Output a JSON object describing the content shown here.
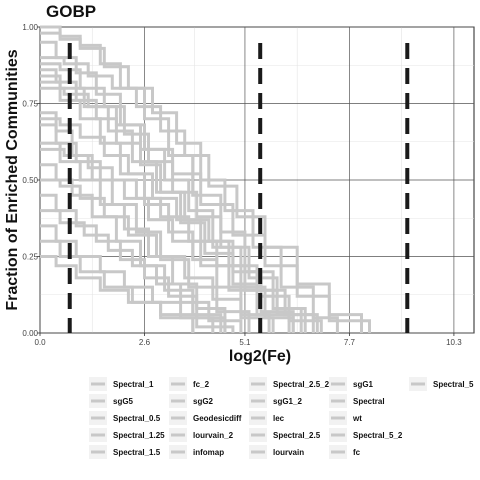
{
  "chart_data": {
    "type": "line",
    "title": "GOBP",
    "xlabel": "log2(Fe)",
    "ylabel": "Fraction of Enriched Communities",
    "xlim": [
      0,
      10.8
    ],
    "ylim": [
      0,
      1.0
    ],
    "x_ticks": [
      {
        "value": 0.0,
        "label": "0.0"
      },
      {
        "value": 2.6,
        "label": "2.6"
      },
      {
        "value": 5.1,
        "label": "5.1"
      },
      {
        "value": 7.7,
        "label": "7.7"
      },
      {
        "value": 10.3,
        "label": "10.3"
      }
    ],
    "y_ticks": [
      {
        "value": 0.0,
        "label": "0.00"
      },
      {
        "value": 0.25,
        "label": "0.25"
      },
      {
        "value": 0.5,
        "label": "0.50"
      },
      {
        "value": 0.75,
        "label": "0.75"
      },
      {
        "value": 1.0,
        "label": "1.00"
      }
    ],
    "grid": true,
    "line_color": "#c8c8c8",
    "reference_color": "#1a1a1a",
    "reference_lines_x": [
      0.74,
      5.48,
      9.14
    ],
    "legend_position": "bottom",
    "series": [
      {
        "name": "Spectral_1",
        "x": [
          0,
          0.5,
          1.0,
          1.5,
          2.0,
          2.6,
          3.2,
          3.8,
          4.5,
          5.1,
          5.8,
          6.5
        ],
        "y": [
          1.0,
          0.97,
          0.94,
          0.88,
          0.8,
          0.7,
          0.58,
          0.45,
          0.33,
          0.2,
          0.08,
          0.0
        ]
      },
      {
        "name": "sgG5",
        "x": [
          0,
          0.5,
          1.0,
          1.6,
          2.2,
          2.8,
          3.4,
          4.0,
          4.6,
          5.3,
          6.0,
          6.8,
          7.4
        ],
        "y": [
          0.98,
          0.96,
          0.93,
          0.87,
          0.8,
          0.72,
          0.62,
          0.5,
          0.4,
          0.28,
          0.15,
          0.05,
          0.0
        ]
      },
      {
        "name": "Spectral_0.5",
        "x": [
          0,
          0.4,
          0.9,
          1.4,
          2.0,
          2.5,
          3.1,
          3.7,
          4.3,
          5.0,
          5.6,
          6.3
        ],
        "y": [
          0.95,
          0.9,
          0.85,
          0.78,
          0.68,
          0.6,
          0.5,
          0.4,
          0.28,
          0.15,
          0.05,
          0.0
        ]
      },
      {
        "name": "Spectral_1.25",
        "x": [
          0,
          0.6,
          1.2,
          1.8,
          2.4,
          3.0,
          3.6,
          4.2,
          4.9,
          5.6,
          6.4,
          7.2,
          8.0
        ],
        "y": [
          0.9,
          0.88,
          0.84,
          0.8,
          0.74,
          0.66,
          0.58,
          0.48,
          0.38,
          0.28,
          0.16,
          0.06,
          0.0
        ]
      },
      {
        "name": "Spectral_1.5",
        "x": [
          0,
          0.5,
          1.0,
          1.6,
          2.1,
          2.7,
          3.3,
          3.9,
          4.5,
          5.2,
          5.9,
          6.6
        ],
        "y": [
          0.88,
          0.86,
          0.8,
          0.74,
          0.65,
          0.56,
          0.46,
          0.38,
          0.28,
          0.18,
          0.08,
          0.0
        ]
      },
      {
        "name": "fc_2",
        "x": [
          0,
          0.4,
          0.9,
          1.4,
          1.9,
          2.5,
          3.0,
          3.6,
          4.2,
          4.8,
          5.5,
          6.2,
          7.0
        ],
        "y": [
          0.86,
          0.82,
          0.76,
          0.7,
          0.62,
          0.55,
          0.46,
          0.37,
          0.3,
          0.2,
          0.12,
          0.04,
          0.0
        ]
      },
      {
        "name": "sgG2",
        "x": [
          0,
          0.5,
          1.1,
          1.7,
          2.3,
          2.9,
          3.5,
          4.1,
          4.8,
          5.5,
          6.3
        ],
        "y": [
          0.84,
          0.8,
          0.74,
          0.66,
          0.56,
          0.46,
          0.36,
          0.26,
          0.16,
          0.07,
          0.0
        ]
      },
      {
        "name": "Geodesicdiff",
        "x": [
          0,
          0.5,
          1.0,
          1.5,
          2.0,
          2.6,
          3.2,
          3.8,
          4.4,
          5.0,
          5.7
        ],
        "y": [
          0.82,
          0.76,
          0.7,
          0.62,
          0.52,
          0.42,
          0.33,
          0.24,
          0.15,
          0.06,
          0.0
        ]
      },
      {
        "name": "lourvain_2",
        "x": [
          0,
          0.6,
          1.2,
          1.9,
          2.6,
          3.3,
          4.0,
          4.8,
          5.6,
          6.4,
          7.2,
          8.2
        ],
        "y": [
          0.8,
          0.78,
          0.74,
          0.68,
          0.6,
          0.52,
          0.42,
          0.32,
          0.22,
          0.12,
          0.04,
          0.0
        ]
      },
      {
        "name": "infomap",
        "x": [
          0,
          0.4,
          0.8,
          1.3,
          1.8,
          2.4,
          3.0,
          3.7,
          4.4,
          5.2
        ],
        "y": [
          0.72,
          0.66,
          0.58,
          0.5,
          0.42,
          0.33,
          0.24,
          0.15,
          0.07,
          0.0
        ]
      },
      {
        "name": "Spectral_2.5_2",
        "x": [
          0,
          0.5,
          1.0,
          1.6,
          2.2,
          2.8,
          3.4,
          4.0,
          4.7,
          5.4,
          6.1,
          6.9
        ],
        "y": [
          0.7,
          0.68,
          0.64,
          0.58,
          0.52,
          0.44,
          0.37,
          0.3,
          0.22,
          0.14,
          0.06,
          0.0
        ]
      },
      {
        "name": "sgG1_2",
        "x": [
          0,
          0.4,
          0.9,
          1.5,
          2.1,
          2.7,
          3.3,
          4.0,
          4.7,
          5.4,
          6.2
        ],
        "y": [
          0.68,
          0.62,
          0.56,
          0.5,
          0.44,
          0.37,
          0.3,
          0.22,
          0.14,
          0.06,
          0.0
        ]
      },
      {
        "name": "lec",
        "x": [
          0,
          0.5,
          1.0,
          1.5,
          2.1,
          2.7,
          3.3,
          3.9,
          4.6
        ],
        "y": [
          0.62,
          0.56,
          0.5,
          0.42,
          0.34,
          0.25,
          0.16,
          0.08,
          0.0
        ]
      },
      {
        "name": "Spectral_2.5",
        "x": [
          0,
          0.6,
          1.2,
          1.8,
          2.4,
          3.0,
          3.7,
          4.4,
          5.1,
          5.9,
          6.8
        ],
        "y": [
          0.6,
          0.58,
          0.54,
          0.5,
          0.44,
          0.38,
          0.3,
          0.22,
          0.14,
          0.06,
          0.0
        ]
      },
      {
        "name": "lourvain",
        "x": [
          0,
          0.4,
          0.8,
          1.3,
          1.9,
          2.5,
          3.1,
          3.8,
          4.5
        ],
        "y": [
          0.55,
          0.5,
          0.45,
          0.38,
          0.3,
          0.22,
          0.14,
          0.06,
          0.0
        ]
      },
      {
        "name": "sgG1",
        "x": [
          0,
          0.5,
          1.0,
          1.6,
          2.2,
          2.9,
          3.6,
          4.3,
          5.0,
          5.8
        ],
        "y": [
          0.5,
          0.48,
          0.44,
          0.38,
          0.32,
          0.25,
          0.18,
          0.11,
          0.05,
          0.0
        ]
      },
      {
        "name": "Spectral",
        "x": [
          0,
          0.4,
          0.9,
          1.4,
          2.0,
          2.6,
          3.2,
          3.9,
          4.6
        ],
        "y": [
          0.45,
          0.4,
          0.35,
          0.3,
          0.24,
          0.18,
          0.12,
          0.05,
          0.0
        ]
      },
      {
        "name": "wt",
        "x": [
          0,
          0.5,
          1.1,
          1.7,
          2.3,
          2.9,
          3.5,
          4.2,
          5.0
        ],
        "y": [
          0.4,
          0.36,
          0.32,
          0.27,
          0.22,
          0.16,
          0.1,
          0.04,
          0.0
        ]
      },
      {
        "name": "Spectral_5_2",
        "x": [
          0,
          0.4,
          0.9,
          1.5,
          2.1,
          2.8,
          3.5,
          4.3
        ],
        "y": [
          0.35,
          0.3,
          0.25,
          0.2,
          0.15,
          0.1,
          0.05,
          0.0
        ]
      },
      {
        "name": "fc",
        "x": [
          0,
          0.5,
          1.0,
          1.6,
          2.3,
          3.0,
          3.8
        ],
        "y": [
          0.3,
          0.25,
          0.2,
          0.15,
          0.1,
          0.05,
          0.0
        ]
      },
      {
        "name": "Spectral_5",
        "x": [
          0,
          0.4,
          0.9,
          1.5,
          2.2,
          3.0,
          3.9,
          4.8
        ],
        "y": [
          0.25,
          0.22,
          0.18,
          0.14,
          0.1,
          0.06,
          0.02,
          0.0
        ]
      }
    ]
  }
}
